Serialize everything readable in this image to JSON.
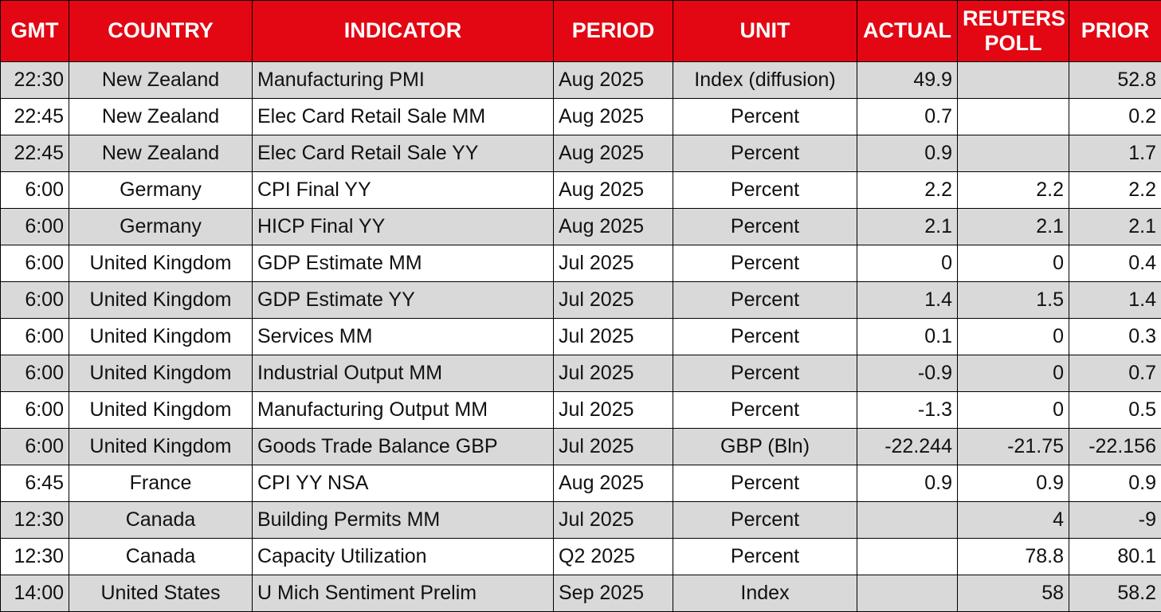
{
  "colors": {
    "header_bg": "#e30613",
    "header_text": "#ffffff",
    "row_shaded": "#d9d9d9",
    "row_plain": "#ffffff",
    "border": "#000000"
  },
  "headers": {
    "gmt": "GMT",
    "country": "COUNTRY",
    "indicator": "INDICATOR",
    "period": "PERIOD",
    "unit": "UNIT",
    "actual": "ACTUAL",
    "poll_line1": "REUTERS",
    "poll_line2": "POLL",
    "prior": "PRIOR"
  },
  "rows": [
    {
      "gmt": "22:30",
      "country": "New Zealand",
      "indicator": "Manufacturing PMI",
      "period": "Aug 2025",
      "unit": "Index (diffusion)",
      "actual": "49.9",
      "poll": "",
      "prior": "52.8"
    },
    {
      "gmt": "22:45",
      "country": "New Zealand",
      "indicator": "Elec Card Retail Sale MM",
      "period": "Aug 2025",
      "unit": "Percent",
      "actual": "0.7",
      "poll": "",
      "prior": "0.2"
    },
    {
      "gmt": "22:45",
      "country": "New Zealand",
      "indicator": "Elec Card Retail Sale YY",
      "period": "Aug 2025",
      "unit": "Percent",
      "actual": "0.9",
      "poll": "",
      "prior": "1.7"
    },
    {
      "gmt": "6:00",
      "country": "Germany",
      "indicator": "CPI Final YY",
      "period": "Aug 2025",
      "unit": "Percent",
      "actual": "2.2",
      "poll": "2.2",
      "prior": "2.2"
    },
    {
      "gmt": "6:00",
      "country": "Germany",
      "indicator": "HICP Final YY",
      "period": "Aug 2025",
      "unit": "Percent",
      "actual": "2.1",
      "poll": "2.1",
      "prior": "2.1"
    },
    {
      "gmt": "6:00",
      "country": "United Kingdom",
      "indicator": "GDP Estimate MM",
      "period": "Jul 2025",
      "unit": "Percent",
      "actual": "0",
      "poll": "0",
      "prior": "0.4"
    },
    {
      "gmt": "6:00",
      "country": "United Kingdom",
      "indicator": "GDP Estimate YY",
      "period": "Jul 2025",
      "unit": "Percent",
      "actual": "1.4",
      "poll": "1.5",
      "prior": "1.4"
    },
    {
      "gmt": "6:00",
      "country": "United Kingdom",
      "indicator": "Services MM",
      "period": "Jul 2025",
      "unit": "Percent",
      "actual": "0.1",
      "poll": "0",
      "prior": "0.3"
    },
    {
      "gmt": "6:00",
      "country": "United Kingdom",
      "indicator": "Industrial Output MM",
      "period": "Jul 2025",
      "unit": "Percent",
      "actual": "-0.9",
      "poll": "0",
      "prior": "0.7"
    },
    {
      "gmt": "6:00",
      "country": "United Kingdom",
      "indicator": "Manufacturing Output MM",
      "period": "Jul 2025",
      "unit": "Percent",
      "actual": "-1.3",
      "poll": "0",
      "prior": "0.5"
    },
    {
      "gmt": "6:00",
      "country": "United Kingdom",
      "indicator": "Goods Trade Balance GBP",
      "period": "Jul 2025",
      "unit": "GBP (Bln)",
      "actual": "-22.244",
      "poll": "-21.75",
      "prior": "-22.156"
    },
    {
      "gmt": "6:45",
      "country": "France",
      "indicator": "CPI YY NSA",
      "period": "Aug 2025",
      "unit": "Percent",
      "actual": "0.9",
      "poll": "0.9",
      "prior": "0.9"
    },
    {
      "gmt": "12:30",
      "country": "Canada",
      "indicator": "Building Permits MM",
      "period": "Jul 2025",
      "unit": "Percent",
      "actual": "",
      "poll": "4",
      "prior": "-9"
    },
    {
      "gmt": "12:30",
      "country": "Canada",
      "indicator": "Capacity Utilization",
      "period": "Q2 2025",
      "unit": "Percent",
      "actual": "",
      "poll": "78.8",
      "prior": "80.1"
    },
    {
      "gmt": "14:00",
      "country": "United States",
      "indicator": "U Mich Sentiment Prelim",
      "period": "Sep 2025",
      "unit": "Index",
      "actual": "",
      "poll": "58",
      "prior": "58.2"
    }
  ]
}
